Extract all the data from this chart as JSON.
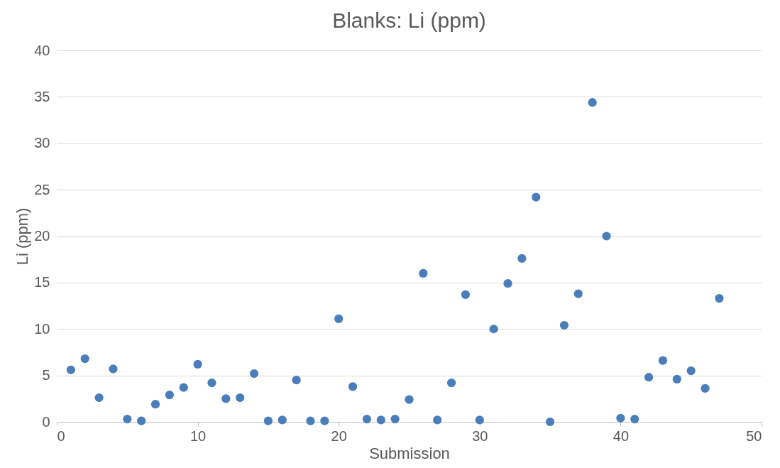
{
  "chart_data": {
    "type": "scatter",
    "title": "Blanks: Li (ppm)",
    "xlabel": "Submission",
    "ylabel": "Li (ppm)",
    "x": [
      1,
      2,
      3,
      4,
      5,
      6,
      7,
      8,
      9,
      10,
      11,
      12,
      13,
      14,
      15,
      16,
      17,
      18,
      19,
      20,
      21,
      22,
      23,
      24,
      25,
      26,
      27,
      28,
      29,
      30,
      31,
      32,
      33,
      34,
      35,
      36,
      37,
      38,
      39,
      40,
      41,
      42,
      43,
      44,
      45,
      46,
      47
    ],
    "series": [
      {
        "color": "#4a7ebb",
        "values": [
          5.6,
          6.8,
          2.6,
          5.7,
          0.3,
          0.1,
          1.9,
          2.9,
          3.7,
          6.2,
          4.2,
          2.5,
          2.6,
          5.2,
          0.1,
          0.2,
          4.5,
          0.1,
          0.1,
          11.1,
          3.8,
          0.3,
          0.2,
          0.3,
          2.4,
          16.0,
          0.2,
          4.2,
          13.7,
          0.2,
          10.0,
          14.9,
          17.6,
          24.2,
          0.0,
          10.4,
          13.8,
          34.4,
          20.0,
          0.4,
          0.3,
          4.8,
          6.6,
          4.6,
          5.5,
          3.6,
          13.3
        ]
      }
    ],
    "xlim": [
      0,
      50
    ],
    "xticks": [
      0,
      10,
      20,
      30,
      40,
      50
    ],
    "ylim": [
      0,
      40
    ],
    "yticks": [
      0,
      5,
      10,
      15,
      20,
      25,
      30,
      35,
      40
    ],
    "grid": "y",
    "marker": "circle",
    "legend": false
  }
}
